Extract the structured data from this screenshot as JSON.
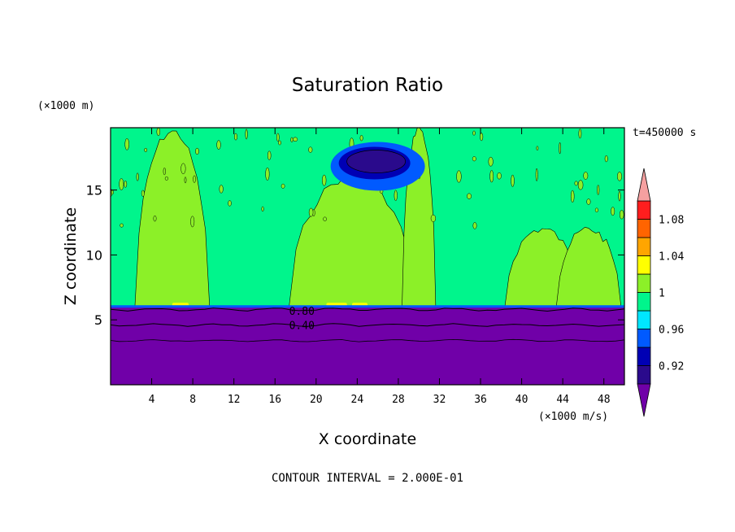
{
  "chart_data": {
    "type": "heatmap",
    "title": "Saturation Ratio",
    "xlabel": "X coordinate",
    "ylabel": "Z coordinate",
    "x_unit": "(×1000 m/s)",
    "y_unit": "(×1000 m)",
    "time_label": "t=450000 s",
    "footer": "CONTOUR INTERVAL = 2.000E-01",
    "xlim": [
      0,
      50
    ],
    "ylim": [
      0,
      19.8
    ],
    "x_ticks": [
      4,
      8,
      12,
      16,
      20,
      24,
      28,
      32,
      36,
      40,
      44,
      48
    ],
    "y_ticks": [
      5,
      10,
      15
    ],
    "colorbar": {
      "levels": [
        0.9,
        0.92,
        0.94,
        0.96,
        0.98,
        1.0,
        1.02,
        1.04,
        1.06,
        1.08,
        1.1
      ],
      "tick_labels": [
        "0.92",
        "0.96",
        "1",
        "1.04",
        "1.08"
      ],
      "colors": [
        "#2a0a8c",
        "#0000b4",
        "#005aff",
        "#00e6ff",
        "#00f58c",
        "#8cf028",
        "#ffff00",
        "#ffa500",
        "#ff6400",
        "#ff1e1e",
        "#f5a0a0"
      ],
      "under_color": "#7000a8",
      "over_color": "#f5a0a0"
    },
    "contour_labels": [
      {
        "text": "0.80",
        "x": 15,
        "z": 5.7
      },
      {
        "text": "0.40",
        "x": 15,
        "z": 4.6
      }
    ],
    "regions": {
      "subsaturated_layer": {
        "z_top": 6.0,
        "value": 0.3
      },
      "background": {
        "value": 0.99
      },
      "supersaturated_towers": [
        {
          "x_start": 3,
          "x_end": 9,
          "z_top": 19.5,
          "value": 1.01
        },
        {
          "x_start": 18,
          "x_end": 29,
          "z_top": 16,
          "value": 1.01
        },
        {
          "x_start": 29,
          "x_end": 31,
          "z_top": 19.8,
          "value": 1.01
        },
        {
          "x_start": 39,
          "x_end": 45,
          "z_top": 12,
          "value": 1.01
        },
        {
          "x_start": 44,
          "x_end": 49,
          "z_top": 12,
          "value": 1.01
        }
      ],
      "dry_patch": {
        "x": 26,
        "z": 17.2,
        "value": 0.91
      }
    }
  }
}
